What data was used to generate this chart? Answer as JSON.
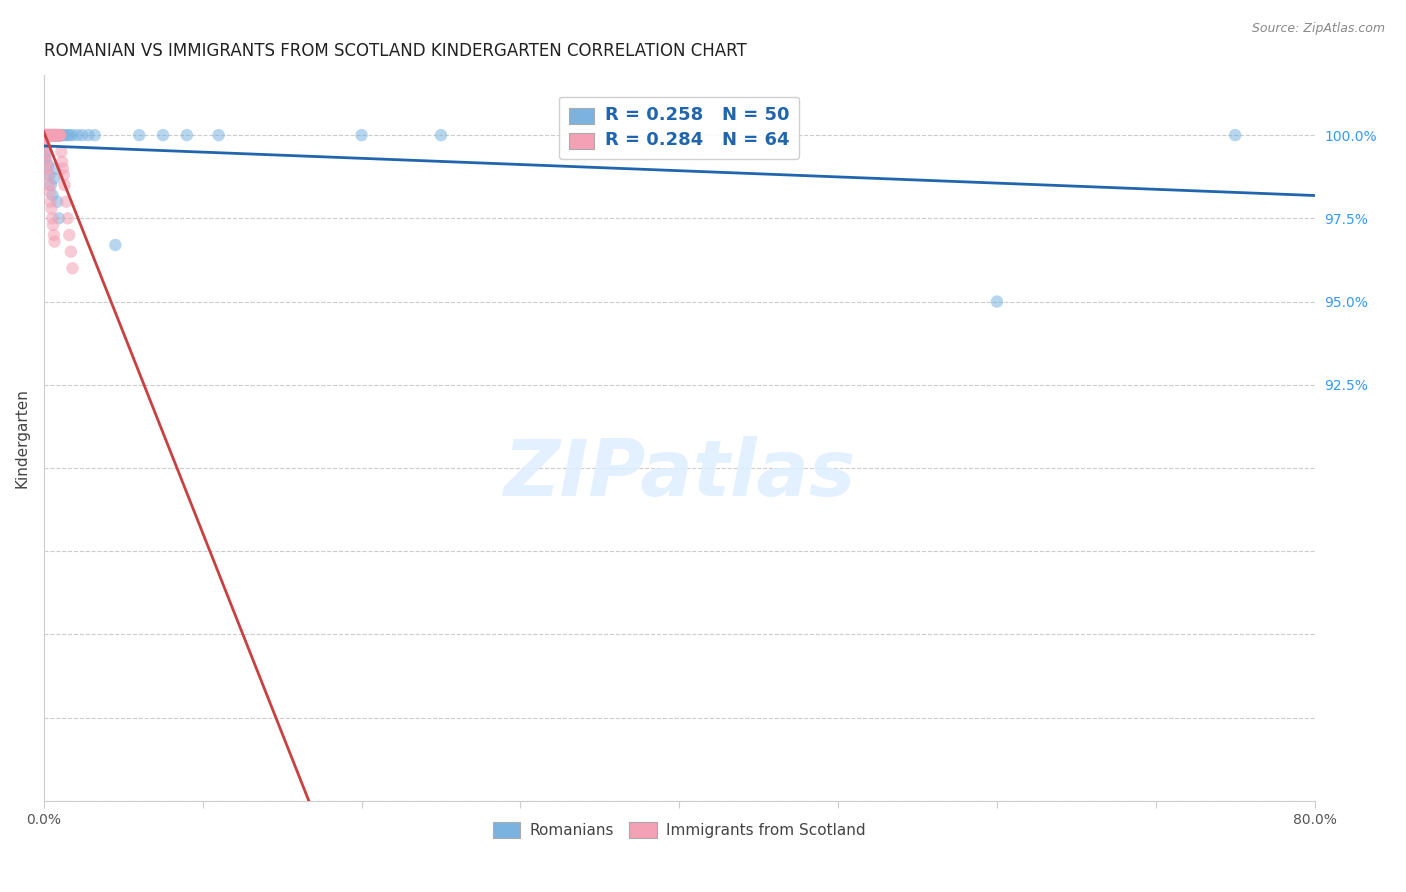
{
  "title": "ROMANIAN VS IMMIGRANTS FROM SCOTLAND KINDERGARTEN CORRELATION CHART",
  "source": "Source: ZipAtlas.com",
  "ylabel": "Kindergarten",
  "xmin": 0.0,
  "xmax": 80.0,
  "ymin": 80.0,
  "ymax": 101.8,
  "legend_R_blue": "R = 0.258",
  "legend_N_blue": "N = 50",
  "legend_R_pink": "R = 0.284",
  "legend_N_pink": "N = 64",
  "blue_color": "#7ab3e0",
  "pink_color": "#f4a0b5",
  "blue_line_color": "#2166ac",
  "pink_line_color": "#c94040",
  "scatter_alpha": 0.55,
  "scatter_size": 80,
  "ytick_vals": [
    80.0,
    82.5,
    85.0,
    87.5,
    90.0,
    92.5,
    95.0,
    97.5,
    100.0
  ],
  "ytick_labels": [
    "",
    "",
    "",
    "",
    "",
    "92.5%",
    "95.0%",
    "97.5%",
    "100.0%"
  ],
  "blue_x": [
    0.12,
    0.18,
    0.22,
    0.28,
    0.32,
    0.38,
    0.42,
    0.48,
    0.52,
    0.58,
    0.62,
    0.68,
    0.72,
    0.78,
    0.82,
    0.88,
    0.92,
    0.98,
    1.02,
    1.08,
    1.12,
    1.18,
    1.32,
    1.48,
    1.62,
    1.78,
    2.1,
    2.4,
    2.8,
    3.2,
    0.08,
    0.14,
    0.24,
    0.34,
    0.44,
    0.54,
    0.64,
    0.74,
    0.84,
    0.94,
    4.5,
    6.0,
    7.5,
    9.0,
    11.0,
    20.0,
    25.0,
    40.0,
    60.0,
    75.0
  ],
  "blue_y": [
    100.0,
    100.0,
    100.0,
    100.0,
    100.0,
    100.0,
    100.0,
    100.0,
    100.0,
    100.0,
    100.0,
    100.0,
    100.0,
    100.0,
    100.0,
    100.0,
    100.0,
    100.0,
    100.0,
    100.0,
    100.0,
    100.0,
    100.0,
    100.0,
    100.0,
    100.0,
    100.0,
    100.0,
    100.0,
    100.0,
    99.3,
    99.5,
    99.1,
    98.8,
    98.5,
    98.2,
    98.7,
    99.0,
    98.0,
    97.5,
    96.7,
    100.0,
    100.0,
    100.0,
    100.0,
    100.0,
    100.0,
    100.0,
    95.0,
    100.0
  ],
  "pink_x": [
    0.05,
    0.08,
    0.1,
    0.12,
    0.15,
    0.18,
    0.2,
    0.22,
    0.25,
    0.28,
    0.3,
    0.32,
    0.35,
    0.38,
    0.4,
    0.42,
    0.45,
    0.48,
    0.5,
    0.52,
    0.55,
    0.58,
    0.6,
    0.62,
    0.65,
    0.68,
    0.7,
    0.72,
    0.75,
    0.78,
    0.8,
    0.82,
    0.85,
    0.88,
    0.9,
    0.92,
    0.95,
    0.98,
    1.0,
    1.05,
    1.1,
    1.15,
    1.2,
    1.25,
    1.3,
    1.4,
    1.5,
    1.6,
    1.7,
    1.8,
    0.06,
    0.09,
    0.13,
    0.17,
    0.23,
    0.27,
    0.33,
    0.37,
    0.43,
    0.47,
    0.53,
    0.57,
    0.63,
    0.67
  ],
  "pink_y": [
    100.0,
    100.0,
    100.0,
    100.0,
    100.0,
    100.0,
    100.0,
    100.0,
    100.0,
    100.0,
    100.0,
    100.0,
    100.0,
    100.0,
    100.0,
    100.0,
    100.0,
    100.0,
    100.0,
    100.0,
    100.0,
    100.0,
    100.0,
    100.0,
    100.0,
    100.0,
    100.0,
    100.0,
    100.0,
    100.0,
    100.0,
    100.0,
    100.0,
    100.0,
    100.0,
    100.0,
    100.0,
    100.0,
    100.0,
    100.0,
    99.5,
    99.2,
    99.0,
    98.8,
    98.5,
    98.0,
    97.5,
    97.0,
    96.5,
    96.0,
    99.8,
    99.6,
    99.4,
    99.2,
    99.0,
    98.8,
    98.5,
    98.3,
    98.0,
    97.8,
    97.5,
    97.3,
    97.0,
    96.8
  ]
}
